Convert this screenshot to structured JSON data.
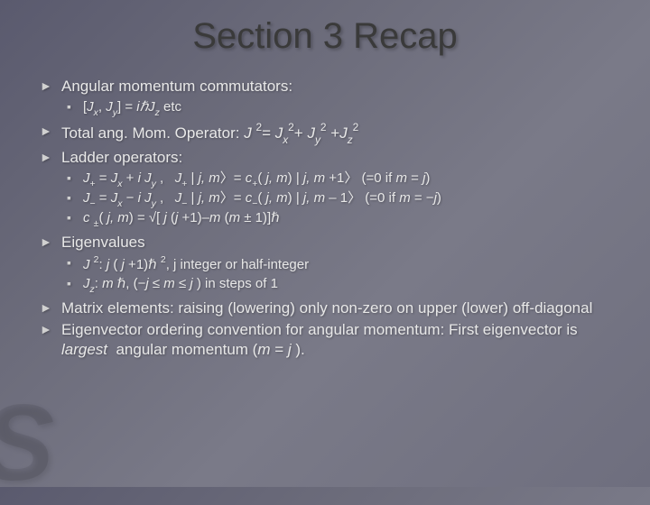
{
  "slide": {
    "title": "Section 3 Recap",
    "bg_gradient": [
      "#5a5a6e",
      "#6b6b7a",
      "#7a7a88",
      "#6e6e7e"
    ],
    "title_color": "#3a3a3a",
    "text_color": "#e8e8e8",
    "bullet_color": "#d0d0d0",
    "title_fontsize": 40,
    "main_fontsize": 17,
    "sub_fontsize": 15,
    "items": [
      {
        "text": "Angular momentum commutators:",
        "sub": [
          {
            "html": "[<span class='ital'>J<span class='sub-sym'>x</span></span>, <span class='ital'>J<span class='sub-sym'>y</span></span>] = <span class='ital'>iℏJ<span class='sub-sym'>z</span></span> etc"
          }
        ]
      },
      {
        "html": "Total ang. Mom. Operator: <span class='ital'>J</span> <span class='sup-sym'>2</span>= <span class='ital'>J<span class='sub-sym'>x</span></span><span class='sup-sym'>2</span>+ <span class='ital'>J<span class='sub-sym'>y</span></span><span class='sup-sym'>2</span> +<span class='ital'>J<span class='sub-sym'>z</span></span><span class='sup-sym'>2</span>"
      },
      {
        "text": "Ladder operators:",
        "sub": [
          {
            "html": "<span class='ital'>J</span><span class='sub-sym'>+</span> = <span class='ital'>J<span class='sub-sym'>x</span></span> + <span class='ital'>i J<span class='sub-sym'>y</span></span> ,&nbsp;&nbsp; <span class='ital'>J</span><span class='sub-sym'>+</span> | <span class='ital'>j, m</span>〉= <span class='ital'>c</span><span class='sub-sym'>+</span>( <span class='ital'>j, m</span>) | <span class='ital'>j, m</span> +1〉 (=0 if <span class='ital'>m</span> = <span class='ital'>j</span>)"
          },
          {
            "html": "<span class='ital'>J</span><span class='sub-sym'>−</span> = <span class='ital'>J<span class='sub-sym'>x</span></span> − <span class='ital'>i J<span class='sub-sym'>y</span></span> ,&nbsp;&nbsp; <span class='ital'>J</span><span class='sub-sym'>−</span> | <span class='ital'>j, m</span>〉= <span class='ital'>c</span><span class='sub-sym'>−</span>( <span class='ital'>j, m</span>) | <span class='ital'>j, m</span> – 1〉 (=0 if <span class='ital'>m</span> = −<span class='ital'>j</span>)"
          },
          {
            "html": "<span class='ital'>c</span> <span class='sub-sym'>±</span>( <span class='ital'>j, m</span>) = √[ <span class='ital'>j</span> (<span class='ital'>j</span> +1)–<span class='ital'>m</span> (<span class='ital'>m</span> ± 1)]ℏ"
          }
        ]
      },
      {
        "text": "Eigenvalues",
        "sub": [
          {
            "html": "<span class='ital'>J</span> <span class='sup-sym'>2</span>: <span class='ital'>j</span> ( <span class='ital'>j</span> +1)ℏ <span class='sup-sym'>2</span>, j integer or half-integer"
          },
          {
            "html": "<span class='ital'>J<span class='sub-sym'>z</span></span>: <span class='ital'>m</span> ℏ, (−<span class='ital'>j</span> ≤ <span class='ital'>m</span> ≤ <span class='ital'>j</span> ) in steps of 1"
          }
        ]
      },
      {
        "html": "Matrix elements: raising (lowering) only non-zero on upper (lower) off-diagonal"
      },
      {
        "html": "Eigenvector ordering convention for angular momentum: First eigenvector is <span class='ital'>largest</span>&nbsp; angular momentum (<span class='ital'>m</span> = <span class='ital'>j</span> )."
      }
    ]
  }
}
